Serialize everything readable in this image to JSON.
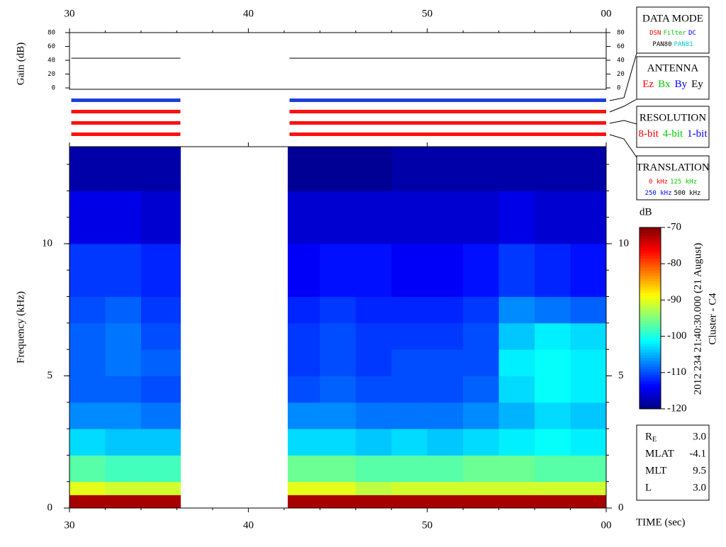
{
  "chart_data": {
    "type": "spectrogram",
    "xlabel": "TIME (sec)",
    "xlim": [
      30,
      60
    ],
    "xticks": [
      30,
      40,
      50,
      {
        "value": 60,
        "label": "00"
      }
    ],
    "ylabel": "Frequency (kHz)",
    "ylim": [
      0,
      13.67
    ],
    "yticks": [
      0,
      5,
      10
    ],
    "gain": {
      "ylabel": "Gain (dB)",
      "ylim": [
        -2,
        80
      ],
      "yticks": [
        0,
        20,
        40,
        60,
        80
      ],
      "x": [
        30.1,
        36.2,
        null,
        42.3,
        60
      ],
      "values": [
        43,
        43,
        null,
        43,
        43
      ],
      "color": "#000000"
    },
    "mode_bar_colors": [
      "#1f3fd8",
      "#ff1010",
      "#ff1010",
      "#ff1010"
    ],
    "spectrogram": {
      "freq_edges": [
        0,
        0.5,
        1,
        2,
        3,
        4,
        5,
        6,
        7,
        8,
        10,
        12,
        13.67
      ],
      "columns": [
        {
          "t": [
            30,
            32
          ],
          "values": [
            -72,
            -90,
            -97,
            -103,
            -107,
            -109,
            -109,
            -109,
            -110,
            -111,
            -115,
            -118
          ]
        },
        {
          "t": [
            32,
            34
          ],
          "values": [
            -72,
            -91,
            -98,
            -104,
            -107,
            -109,
            -108,
            -108,
            -109,
            -111,
            -115,
            -118
          ]
        },
        {
          "t": [
            34,
            36.2
          ],
          "values": [
            -72,
            -91,
            -98,
            -104,
            -108,
            -110,
            -109,
            -110,
            -111,
            -112,
            -116,
            -118
          ]
        },
        {
          "t": [
            42.2,
            44
          ],
          "values": [
            -72,
            -90,
            -96,
            -103,
            -107,
            -110,
            -111,
            -111,
            -112,
            -114,
            -116,
            -119
          ]
        },
        {
          "t": [
            44,
            46
          ],
          "values": [
            -72,
            -90,
            -96,
            -103,
            -107,
            -109,
            -110,
            -110,
            -111,
            -113,
            -116,
            -119
          ]
        },
        {
          "t": [
            46,
            48
          ],
          "values": [
            -72,
            -92,
            -97,
            -104,
            -108,
            -110,
            -111,
            -111,
            -112,
            -113,
            -116,
            -119
          ]
        },
        {
          "t": [
            48,
            50
          ],
          "values": [
            -72,
            -91,
            -97,
            -103,
            -108,
            -110,
            -110,
            -111,
            -112,
            -114,
            -116,
            -118
          ]
        },
        {
          "t": [
            50,
            52
          ],
          "values": [
            -72,
            -91,
            -97,
            -104,
            -108,
            -110,
            -110,
            -111,
            -112,
            -114,
            -116,
            -118
          ]
        },
        {
          "t": [
            52,
            54
          ],
          "values": [
            -72,
            -91,
            -96,
            -103,
            -107,
            -109,
            -110,
            -110,
            -111,
            -113,
            -116,
            -118
          ]
        },
        {
          "t": [
            54,
            56
          ],
          "values": [
            -72,
            -91,
            -96,
            -102,
            -105,
            -103,
            -102,
            -104,
            -107,
            -111,
            -115,
            -118
          ]
        },
        {
          "t": [
            56,
            58
          ],
          "values": [
            -72,
            -91,
            -97,
            -101,
            -103,
            -101,
            -101,
            -102,
            -108,
            -112,
            -116,
            -118
          ]
        },
        {
          "t": [
            58,
            60
          ],
          "values": [
            -72,
            -91,
            -97,
            -102,
            -104,
            -102,
            -102,
            -103,
            -109,
            -113,
            -116,
            -118
          ]
        }
      ]
    },
    "colorbar": {
      "label": "dB",
      "lim": [
        -120,
        -70
      ],
      "ticks": [
        -70,
        -80,
        -90,
        -100,
        -110,
        -120
      ]
    },
    "side_note": [
      "2012 234 21:40:30.000 (21 August)",
      "Cluster - C4"
    ],
    "legend_boxes": [
      {
        "title": "DATA MODE",
        "rows": [
          [
            {
              "text": "DSN",
              "color": "#ff0000"
            },
            {
              "text": "Filter",
              "color": "#00cc00"
            },
            {
              "text": "DC",
              "color": "#0000ff"
            }
          ],
          [
            {
              "text": "PAN80",
              "color": "#000000"
            },
            {
              "text": "PAN81",
              "color": "#00cccc"
            }
          ]
        ]
      },
      {
        "title": "ANTENNA",
        "rows": [
          [
            {
              "text": "Ez",
              "color": "#ff0000"
            },
            {
              "text": "Bx",
              "color": "#00cc00"
            },
            {
              "text": "By",
              "color": "#0000ff"
            },
            {
              "text": "Ey",
              "color": "#000000"
            }
          ]
        ]
      },
      {
        "title": "RESOLUTION",
        "rows": [
          [
            {
              "text": "8-bit",
              "color": "#ff0000"
            },
            {
              "text": "4-bit",
              "color": "#00cc00"
            },
            {
              "text": "1-bit",
              "color": "#0000ff"
            }
          ]
        ]
      },
      {
        "title": "TRANSLATION",
        "rows": [
          [
            {
              "text": "0 kHz",
              "color": "#ff0000"
            },
            {
              "text": "125 kHz",
              "color": "#00cc00"
            }
          ],
          [
            {
              "text": "250 kHz",
              "color": "#0000ff"
            },
            {
              "text": "500 kHz",
              "color": "#000000"
            }
          ]
        ]
      }
    ],
    "info": [
      {
        "label": "R",
        "sub": "E",
        "value": "3.0"
      },
      {
        "label": "MLAT",
        "value": "-4.1"
      },
      {
        "label": "MLT",
        "value": "9.5"
      },
      {
        "label": "L",
        "value": "3.0"
      }
    ]
  }
}
